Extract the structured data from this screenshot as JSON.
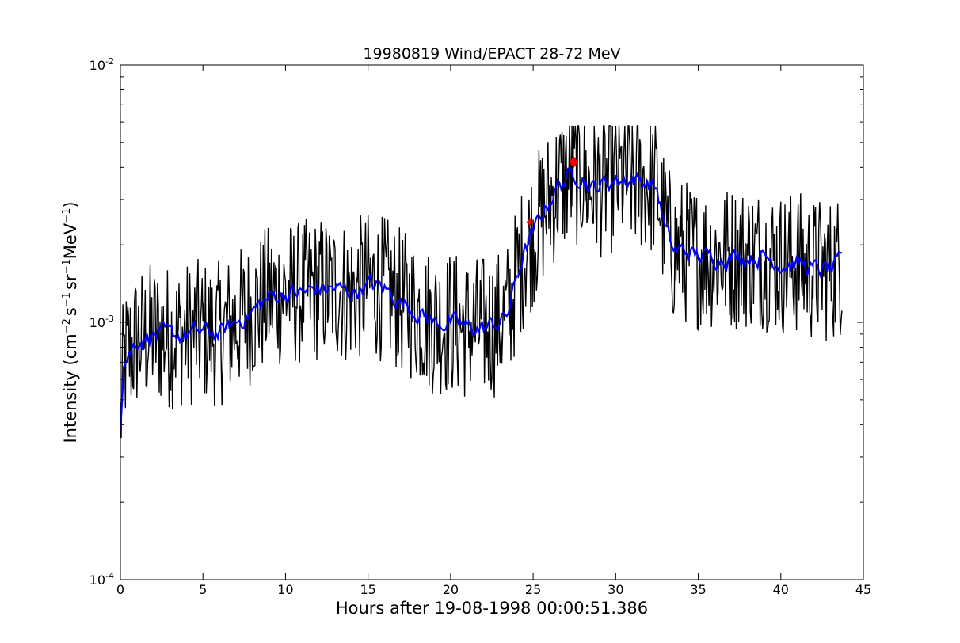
{
  "chart_data": {
    "type": "line",
    "title": "19980819 Wind/EPACT 28-72 MeV",
    "xlabel": "Hours after 19-08-1998 00:00:51.386",
    "ylabel": {
      "parts": [
        "Intensity (cm",
        "−2",
        "s",
        "−1",
        "sr",
        "−1",
        "MeV",
        "−1",
        ")"
      ]
    },
    "xlim": [
      0,
      45
    ],
    "ylim": [
      0.0001,
      0.01
    ],
    "yscale": "log",
    "grid": false,
    "x_ticks": [
      {
        "value": 0,
        "label": "0"
      },
      {
        "value": 5,
        "label": "5"
      },
      {
        "value": 10,
        "label": "10"
      },
      {
        "value": 15,
        "label": "15"
      },
      {
        "value": 20,
        "label": "20"
      },
      {
        "value": 25,
        "label": "25"
      },
      {
        "value": 30,
        "label": "30"
      },
      {
        "value": 35,
        "label": "35"
      },
      {
        "value": 40,
        "label": "40"
      },
      {
        "value": 45,
        "label": "45"
      }
    ],
    "y_ticks": [
      {
        "value": 0.01,
        "base": "10",
        "exp": "-2"
      },
      {
        "value": 0.001,
        "base": "10",
        "exp": "-3"
      },
      {
        "value": 0.0001,
        "base": "10",
        "exp": "-4"
      }
    ],
    "series_envelope": {
      "x": [
        0,
        0.2,
        1,
        2,
        3,
        4,
        5,
        6,
        7,
        8,
        9,
        10,
        11,
        12,
        13,
        14,
        15,
        16,
        17,
        18,
        19,
        20,
        21,
        22,
        23,
        23.5,
        24,
        24.5,
        25,
        25.5,
        26,
        26.5,
        27,
        27.5,
        28,
        28.5,
        29,
        30,
        31,
        32,
        32.5,
        33,
        33.5,
        34,
        35,
        36,
        37,
        38,
        39,
        40,
        41,
        42,
        43,
        43.7
      ],
      "y": [
        0.0004,
        0.0007,
        0.00085,
        0.0009,
        0.00088,
        0.0009,
        0.00092,
        0.0009,
        0.001,
        0.0011,
        0.00125,
        0.0013,
        0.0013,
        0.00135,
        0.00135,
        0.0013,
        0.0014,
        0.00135,
        0.0012,
        0.0011,
        0.001,
        0.001,
        0.00095,
        0.00095,
        0.001,
        0.0011,
        0.0015,
        0.0019,
        0.0022,
        0.0026,
        0.003,
        0.0034,
        0.0036,
        0.0038,
        0.0037,
        0.0033,
        0.0034,
        0.0036,
        0.0036,
        0.0035,
        0.0033,
        0.0023,
        0.0019,
        0.0019,
        0.0018,
        0.0018,
        0.0018,
        0.0018,
        0.0018,
        0.0017,
        0.0017,
        0.0016,
        0.0016,
        0.0017
      ]
    },
    "series": [
      {
        "role": "raw",
        "color": "#000000",
        "noise": 0.18,
        "dt": 0.05
      },
      {
        "role": "smoothed",
        "color": "#0000ff",
        "noise": 0.06,
        "dt": 0.1
      }
    ],
    "markers": [
      {
        "x": 24.8,
        "y": 0.00245,
        "color": "#ff0000",
        "size": "small"
      },
      {
        "x": 27.45,
        "y": 0.0042,
        "color": "#ff0000",
        "size": "large"
      }
    ]
  }
}
